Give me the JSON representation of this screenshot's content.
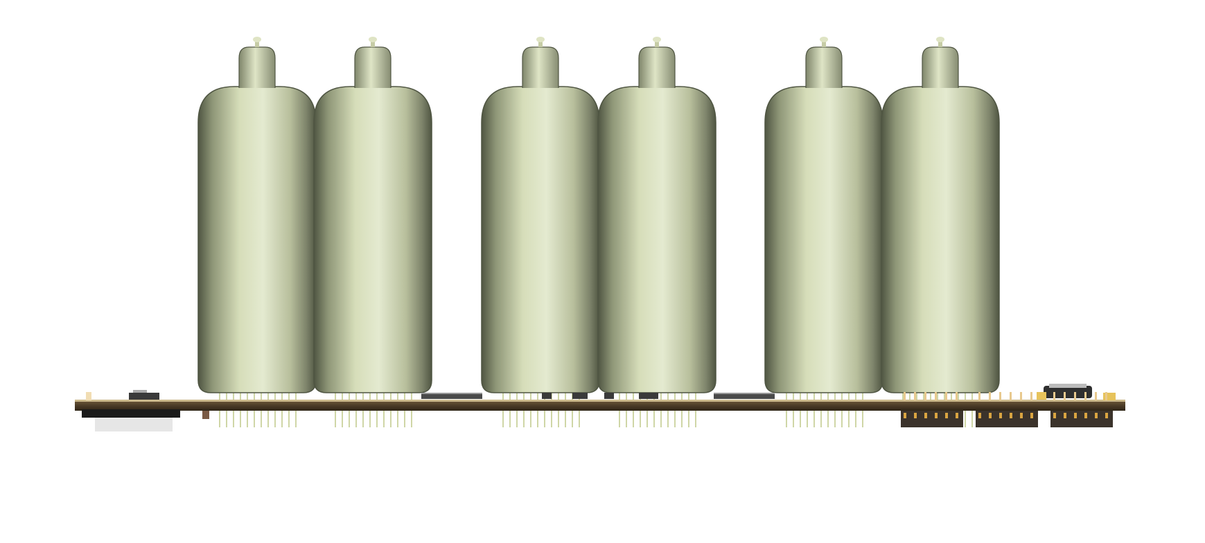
{
  "scene": {
    "background_color": "#ffffff",
    "tube_count": 6,
    "pcb_color": "#4a3a26",
    "pcb_edge_color": "#2e2416",
    "glass_light_color": "#e4ead0",
    "glass_dark_color": "#4f5542",
    "pin_color": "#cfd6a6",
    "header_pin_color": "#d9a441",
    "connector_color": "#3b332b",
    "icon_names": [
      "nixie-tube-icon",
      "pcb-board-icon",
      "pin-header-icon",
      "smd-chip-icon",
      "usb-connector-icon"
    ]
  }
}
